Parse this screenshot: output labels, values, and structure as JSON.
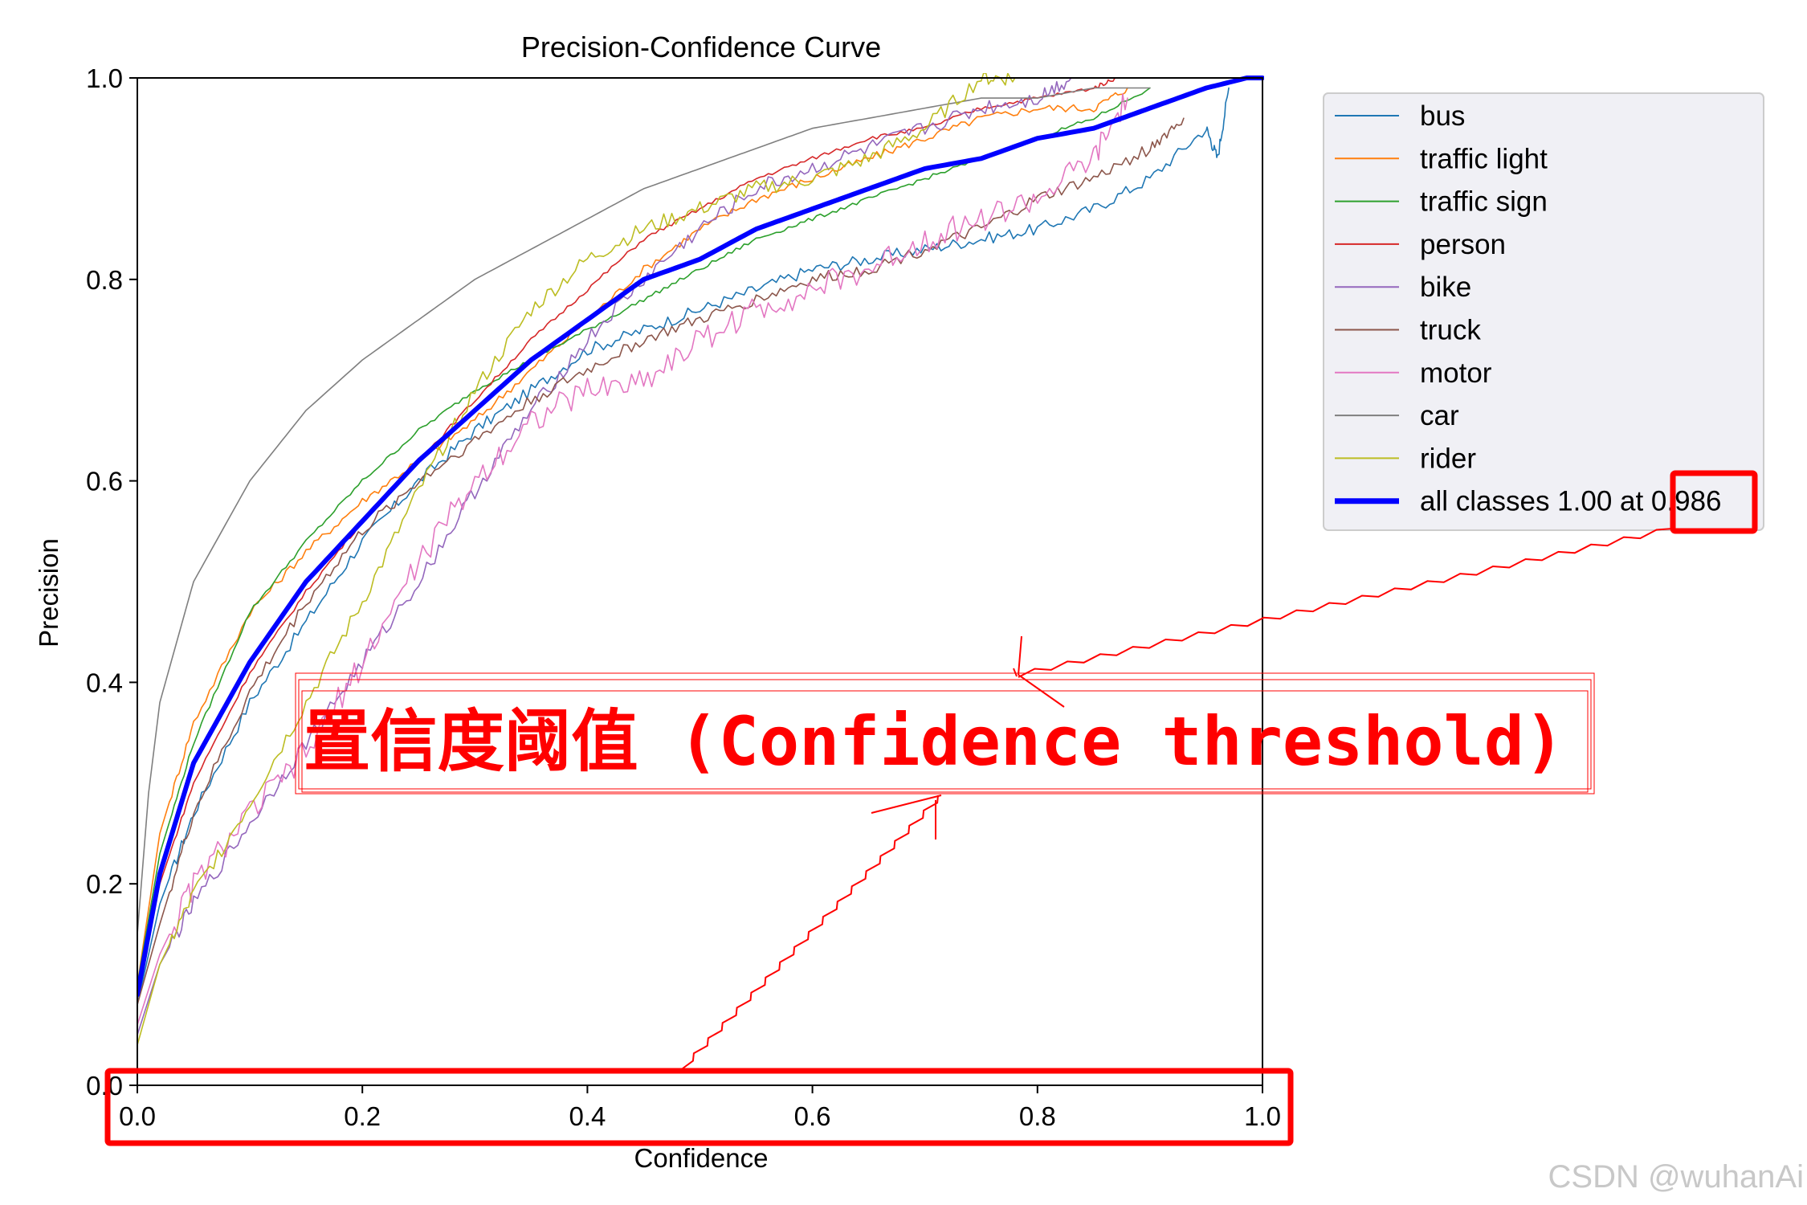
{
  "chart_data": {
    "type": "line",
    "title": "Precision-Confidence Curve",
    "xlabel": "Confidence",
    "ylabel": "Precision",
    "xlim": [
      0,
      1
    ],
    "ylim": [
      0,
      1
    ],
    "xticks": [
      "0.0",
      "0.2",
      "0.4",
      "0.6",
      "0.8",
      "1.0"
    ],
    "yticks": [
      "0.0",
      "0.2",
      "0.4",
      "0.6",
      "0.8",
      "1.0"
    ],
    "grid": false,
    "legend_position": "outside right, top",
    "series": [
      {
        "name": "bus",
        "color": "#1f77b4",
        "width": 1.6,
        "noise": 0.006,
        "x": [
          0,
          0.02,
          0.05,
          0.1,
          0.15,
          0.2,
          0.25,
          0.3,
          0.35,
          0.4,
          0.45,
          0.5,
          0.55,
          0.6,
          0.65,
          0.7,
          0.75,
          0.8,
          0.85,
          0.9,
          0.95,
          0.96,
          0.97
        ],
        "y": [
          0.08,
          0.18,
          0.27,
          0.38,
          0.46,
          0.54,
          0.6,
          0.65,
          0.69,
          0.73,
          0.75,
          0.77,
          0.79,
          0.81,
          0.82,
          0.83,
          0.84,
          0.85,
          0.87,
          0.9,
          0.95,
          0.92,
          0.99
        ]
      },
      {
        "name": "traffic light",
        "color": "#ff7f0e",
        "width": 1.6,
        "noise": 0.004,
        "x": [
          0,
          0.02,
          0.05,
          0.1,
          0.15,
          0.2,
          0.25,
          0.3,
          0.35,
          0.4,
          0.45,
          0.5,
          0.55,
          0.6,
          0.65,
          0.7,
          0.75,
          0.8,
          0.85,
          0.88
        ],
        "y": [
          0.1,
          0.25,
          0.36,
          0.47,
          0.53,
          0.58,
          0.62,
          0.66,
          0.71,
          0.76,
          0.81,
          0.85,
          0.88,
          0.9,
          0.92,
          0.94,
          0.96,
          0.97,
          0.97,
          0.99
        ]
      },
      {
        "name": "traffic sign",
        "color": "#2ca02c",
        "width": 1.6,
        "noise": 0.002,
        "x": [
          0,
          0.02,
          0.05,
          0.1,
          0.15,
          0.2,
          0.25,
          0.3,
          0.35,
          0.4,
          0.45,
          0.5,
          0.55,
          0.6,
          0.65,
          0.7,
          0.75,
          0.8,
          0.85,
          0.9
        ],
        "y": [
          0.1,
          0.23,
          0.34,
          0.47,
          0.54,
          0.6,
          0.65,
          0.69,
          0.72,
          0.75,
          0.78,
          0.81,
          0.84,
          0.86,
          0.88,
          0.9,
          0.92,
          0.94,
          0.96,
          0.99
        ]
      },
      {
        "name": "person",
        "color": "#d62728",
        "width": 1.6,
        "noise": 0.002,
        "x": [
          0,
          0.02,
          0.05,
          0.1,
          0.15,
          0.2,
          0.25,
          0.3,
          0.35,
          0.4,
          0.45,
          0.5,
          0.55,
          0.6,
          0.65,
          0.7,
          0.75,
          0.8,
          0.85,
          0.87
        ],
        "y": [
          0.1,
          0.2,
          0.3,
          0.41,
          0.49,
          0.56,
          0.62,
          0.68,
          0.74,
          0.79,
          0.84,
          0.87,
          0.9,
          0.92,
          0.94,
          0.95,
          0.97,
          0.98,
          0.99,
          1.0
        ]
      },
      {
        "name": "bike",
        "color": "#9467bd",
        "width": 1.6,
        "noise": 0.008,
        "x": [
          0,
          0.02,
          0.05,
          0.1,
          0.15,
          0.2,
          0.25,
          0.3,
          0.35,
          0.4,
          0.45,
          0.5,
          0.55,
          0.6,
          0.65,
          0.7,
          0.75,
          0.8,
          0.83
        ],
        "y": [
          0.05,
          0.12,
          0.18,
          0.26,
          0.34,
          0.42,
          0.5,
          0.59,
          0.67,
          0.74,
          0.8,
          0.85,
          0.89,
          0.91,
          0.93,
          0.95,
          0.97,
          0.98,
          1.0
        ]
      },
      {
        "name": "truck",
        "color": "#8c564b",
        "width": 1.6,
        "noise": 0.006,
        "x": [
          0,
          0.02,
          0.05,
          0.1,
          0.15,
          0.2,
          0.25,
          0.3,
          0.35,
          0.4,
          0.45,
          0.5,
          0.55,
          0.6,
          0.65,
          0.7,
          0.75,
          0.8,
          0.85,
          0.9,
          0.93
        ],
        "y": [
          0.08,
          0.16,
          0.27,
          0.39,
          0.48,
          0.55,
          0.6,
          0.64,
          0.68,
          0.71,
          0.74,
          0.76,
          0.78,
          0.8,
          0.81,
          0.83,
          0.85,
          0.88,
          0.9,
          0.93,
          0.96
        ]
      },
      {
        "name": "motor",
        "color": "#e377c2",
        "width": 1.6,
        "noise": 0.014,
        "x": [
          0,
          0.02,
          0.05,
          0.1,
          0.15,
          0.2,
          0.25,
          0.3,
          0.35,
          0.4,
          0.45,
          0.5,
          0.55,
          0.6,
          0.65,
          0.7,
          0.75,
          0.8,
          0.85,
          0.88
        ],
        "y": [
          0.06,
          0.13,
          0.2,
          0.27,
          0.33,
          0.42,
          0.52,
          0.6,
          0.66,
          0.69,
          0.7,
          0.74,
          0.77,
          0.79,
          0.81,
          0.84,
          0.86,
          0.88,
          0.92,
          0.98
        ]
      },
      {
        "name": "car",
        "color": "#7f7f7f",
        "width": 1.6,
        "noise": 0,
        "x": [
          0,
          0.01,
          0.02,
          0.05,
          0.1,
          0.15,
          0.2,
          0.25,
          0.3,
          0.35,
          0.4,
          0.45,
          0.5,
          0.55,
          0.6,
          0.65,
          0.7,
          0.75,
          0.8,
          0.85,
          0.9
        ],
        "y": [
          0.15,
          0.29,
          0.38,
          0.5,
          0.6,
          0.67,
          0.72,
          0.76,
          0.8,
          0.83,
          0.86,
          0.89,
          0.91,
          0.93,
          0.95,
          0.96,
          0.97,
          0.98,
          0.98,
          0.99,
          0.99
        ]
      },
      {
        "name": "rider",
        "color": "#bcbd22",
        "width": 1.6,
        "noise": 0.008,
        "x": [
          0,
          0.02,
          0.05,
          0.1,
          0.15,
          0.2,
          0.25,
          0.3,
          0.35,
          0.4,
          0.45,
          0.5,
          0.55,
          0.6,
          0.65,
          0.7,
          0.75,
          0.78
        ],
        "y": [
          0.04,
          0.12,
          0.19,
          0.28,
          0.38,
          0.48,
          0.59,
          0.69,
          0.77,
          0.82,
          0.85,
          0.87,
          0.89,
          0.9,
          0.92,
          0.95,
          1.0,
          1.0
        ]
      },
      {
        "name": "all classes 1.00 at 0.986",
        "color": "#0000ff",
        "width": 6,
        "noise": 0,
        "x": [
          0,
          0.02,
          0.05,
          0.1,
          0.15,
          0.2,
          0.25,
          0.3,
          0.35,
          0.4,
          0.45,
          0.5,
          0.55,
          0.6,
          0.65,
          0.7,
          0.75,
          0.8,
          0.85,
          0.9,
          0.95,
          0.986,
          1.0
        ],
        "y": [
          0.09,
          0.21,
          0.32,
          0.42,
          0.5,
          0.56,
          0.62,
          0.67,
          0.72,
          0.76,
          0.8,
          0.82,
          0.85,
          0.87,
          0.89,
          0.91,
          0.92,
          0.94,
          0.95,
          0.97,
          0.99,
          1.0,
          1.0
        ]
      }
    ]
  },
  "annotation": {
    "text": "置信度阈值 (Confidence threshold)",
    "color": "#ff0000"
  },
  "watermark": "CSDN @wuhanAi"
}
